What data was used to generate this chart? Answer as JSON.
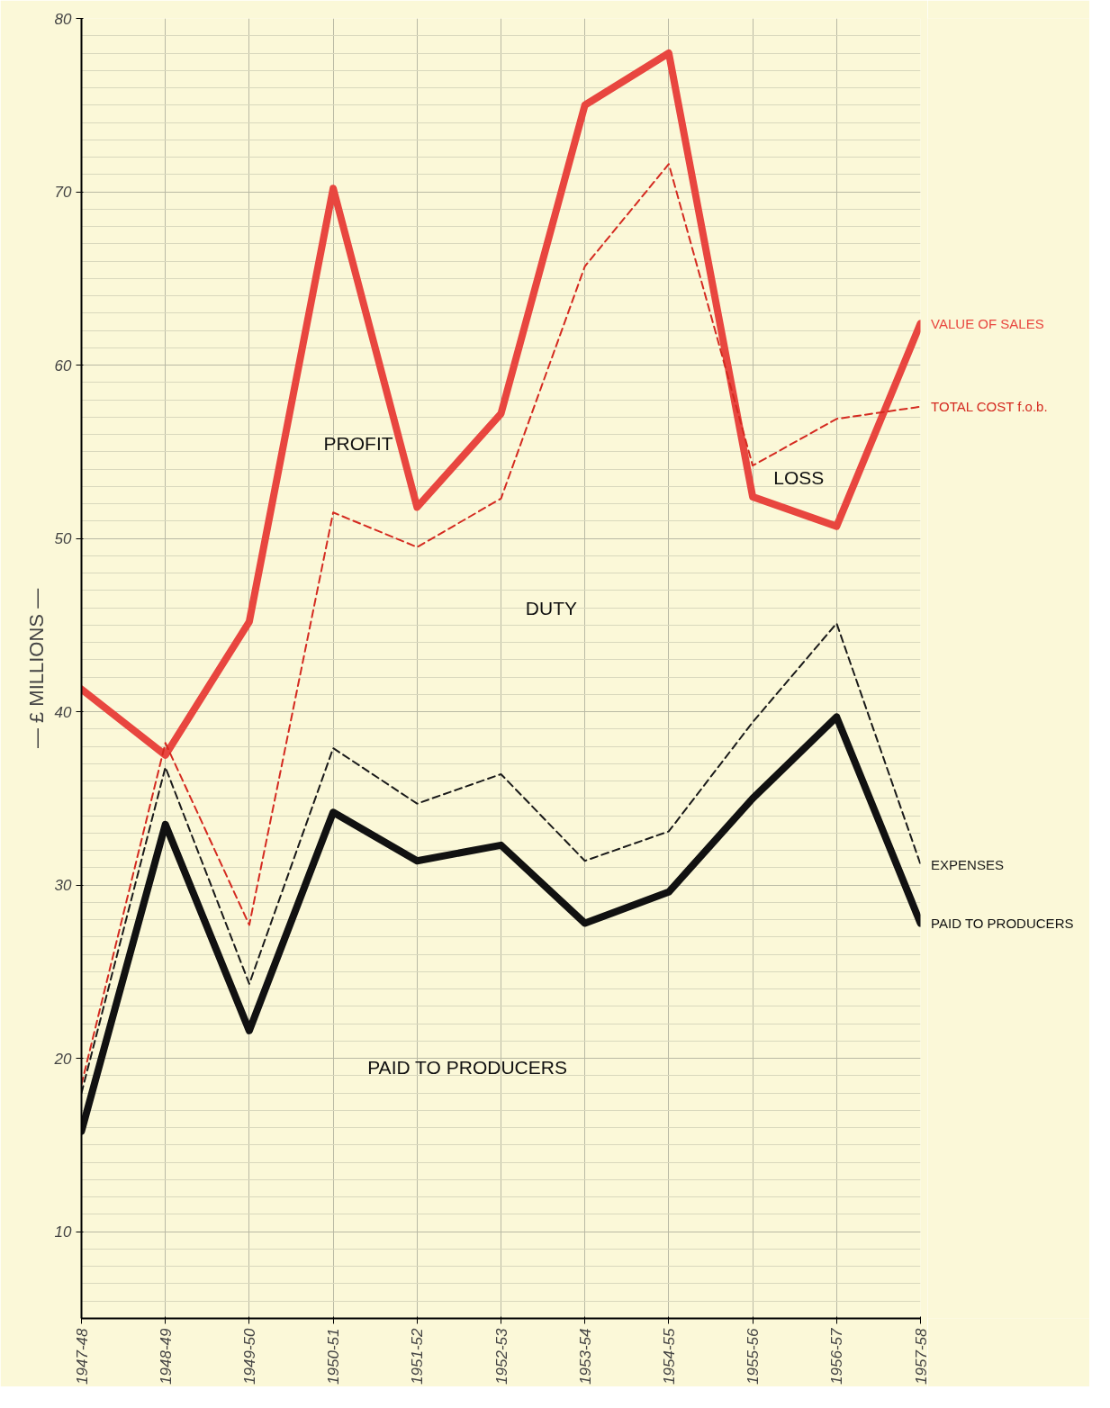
{
  "chart_data": {
    "type": "line",
    "ylabel": "— £ MILLIONS —",
    "categories": [
      "1947-48",
      "1948-49",
      "1949-50",
      "1950-51",
      "1951-52",
      "1952-53",
      "1953-54",
      "1954-55",
      "1955-56",
      "1956-57",
      "1957-58"
    ],
    "series": [
      {
        "name": "VALUE OF SALES",
        "color": "#e8463f",
        "line_style": "solid",
        "values": [
          41.3,
          37.5,
          45.2,
          70.2,
          51.8,
          57.2,
          75.0,
          78.0,
          52.4,
          50.7,
          62.4
        ]
      },
      {
        "name": "TOTAL COST f.o.b.",
        "color": "#d42a20",
        "line_style": "dashed",
        "values": [
          18.5,
          38.2,
          27.7,
          51.5,
          49.5,
          52.3,
          65.7,
          71.6,
          54.2,
          56.9,
          57.6
        ]
      },
      {
        "name": "EXPENSES",
        "color": "#1a1a1a",
        "line_style": "dashed",
        "values": [
          18.0,
          36.8,
          24.3,
          37.9,
          34.7,
          36.4,
          31.4,
          33.1,
          39.4,
          45.1,
          31.2
        ]
      },
      {
        "name": "PAID TO PRODUCERS",
        "color": "#111111",
        "line_style": "solid",
        "values": [
          15.8,
          33.5,
          21.6,
          34.2,
          31.4,
          32.3,
          27.8,
          29.6,
          35.0,
          39.7,
          27.8
        ]
      }
    ],
    "ylim": [
      5,
      80
    ],
    "yticks": [
      10,
      20,
      30,
      40,
      50,
      60,
      70,
      80
    ],
    "grid": true,
    "marker": "none",
    "annotations": [
      "PROFIT",
      "DUTY",
      "LOSS",
      "PAID TO PRODUCERS"
    ]
  }
}
